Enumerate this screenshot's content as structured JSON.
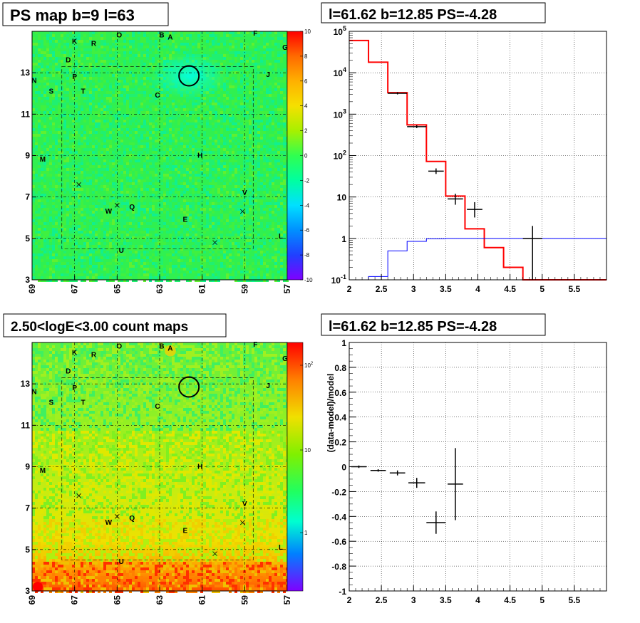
{
  "panels": {
    "tl": {
      "title": "PS map b=9 l=63"
    },
    "tr": {
      "title": "l=61.62 b=12.85 PS=-4.28"
    },
    "bl": {
      "title": "2.50<logE<3.00 count maps"
    },
    "br": {
      "title": "l=61.62 b=12.85 PS=-4.28"
    }
  },
  "chart_data": [
    {
      "type": "heatmap",
      "title": "PS map b=9 l=63",
      "x_ticks": [
        "69",
        "67",
        "65",
        "63",
        "61",
        "59",
        "57"
      ],
      "y_ticks": [
        "3",
        "5",
        "7",
        "9",
        "11",
        "13"
      ],
      "xlim": [
        69,
        57
      ],
      "ylim": [
        3,
        15
      ],
      "z_range": [
        -10,
        10
      ],
      "palette_labels": [
        "10",
        "8",
        "6",
        "4",
        "2",
        "0",
        "-2",
        "-4",
        "-6",
        "-8",
        "-10"
      ],
      "grid": true,
      "sources": [
        {
          "label": "O",
          "l": 64.9,
          "b": 14.7
        },
        {
          "label": "B",
          "l": 62.9,
          "b": 14.7
        },
        {
          "label": "A",
          "l": 62.5,
          "b": 14.6
        },
        {
          "label": "F",
          "l": 58.5,
          "b": 14.8
        },
        {
          "label": "K",
          "l": 67.0,
          "b": 14.4
        },
        {
          "label": "R",
          "l": 66.1,
          "b": 14.3
        },
        {
          "label": "G",
          "l": 57.1,
          "b": 14.1
        },
        {
          "label": "D",
          "l": 67.3,
          "b": 13.5
        },
        {
          "label": "P",
          "l": 67.0,
          "b": 12.7
        },
        {
          "label": "N",
          "l": 68.9,
          "b": 12.5
        },
        {
          "label": "J",
          "l": 57.9,
          "b": 12.8
        },
        {
          "label": "S",
          "l": 68.1,
          "b": 12.0
        },
        {
          "label": "T",
          "l": 66.6,
          "b": 12.0
        },
        {
          "label": "C",
          "l": 63.1,
          "b": 11.8
        },
        {
          "label": "M",
          "l": 68.5,
          "b": 8.7
        },
        {
          "label": "H",
          "l": 61.1,
          "b": 8.9
        },
        {
          "label": "V",
          "l": 59.0,
          "b": 7.1
        },
        {
          "label": "Q",
          "l": 64.3,
          "b": 6.4
        },
        {
          "label": "W",
          "l": 65.4,
          "b": 6.2
        },
        {
          "label": "E",
          "l": 61.8,
          "b": 5.8
        },
        {
          "label": "L",
          "l": 57.3,
          "b": 5.0
        },
        {
          "label": "U",
          "l": 64.8,
          "b": 4.3
        }
      ],
      "crosses": [
        {
          "l": 66.8,
          "b": 7.6
        },
        {
          "l": 65.0,
          "b": 6.6
        },
        {
          "l": 59.1,
          "b": 6.3
        },
        {
          "l": 60.4,
          "b": 4.8
        }
      ],
      "circle": {
        "l": 61.62,
        "b": 12.85
      }
    },
    {
      "type": "line",
      "title": "l=61.62 b=12.85 PS=-4.28",
      "xlim": [
        2,
        6
      ],
      "ylim": [
        0.1,
        100000
      ],
      "yscale": "log",
      "x_ticks": [
        "2",
        "2.5",
        "3",
        "3.5",
        "4",
        "4.5",
        "5",
        "5.5"
      ],
      "y_ticks": [
        "10^-1",
        "1",
        "10",
        "10^2",
        "10^3",
        "10^4",
        "10^5"
      ],
      "grid": true,
      "series": [
        {
          "color": "#ff0000",
          "edges": [
            2.0,
            2.3,
            2.6,
            2.9,
            3.2,
            3.5,
            3.8,
            4.1,
            4.4,
            4.7,
            5.0,
            5.3,
            5.6,
            6.0
          ],
          "values": [
            60000,
            18000,
            3300,
            550,
            72,
            10.5,
            1.7,
            0.6,
            0.2,
            0.1,
            0.1,
            0.1,
            0.1
          ]
        },
        {
          "color": "#0000ff",
          "edges": [
            2.0,
            2.3,
            2.6,
            2.9,
            3.2,
            3.5,
            3.8,
            4.1,
            4.4,
            4.7,
            5.0,
            5.3,
            5.6,
            6.0
          ],
          "values": [
            0.1,
            0.12,
            0.5,
            0.85,
            0.98,
            1.0,
            1.0,
            1.0,
            1.0,
            1.0,
            1.0,
            1.0,
            1.0
          ]
        }
      ],
      "data_points": [
        {
          "x": 2.75,
          "y": 3200,
          "xerr": 0.15,
          "ylo": 3000,
          "yhi": 3400
        },
        {
          "x": 3.05,
          "y": 500,
          "xerr": 0.15,
          "ylo": 460,
          "yhi": 540
        },
        {
          "x": 3.35,
          "y": 42,
          "xerr": 0.12,
          "ylo": 36,
          "yhi": 49
        },
        {
          "x": 3.65,
          "y": 9,
          "xerr": 0.12,
          "ylo": 6.5,
          "yhi": 12
        },
        {
          "x": 3.95,
          "y": 5,
          "xerr": 0.12,
          "ylo": 3.2,
          "yhi": 7.5
        },
        {
          "x": 4.85,
          "y": 1,
          "xerr": 0.15,
          "ylo": 0.1,
          "yhi": 2
        }
      ]
    },
    {
      "type": "heatmap",
      "title": "2.50<logE<3.00 count maps",
      "x_ticks": [
        "69",
        "67",
        "65",
        "63",
        "61",
        "59",
        "57"
      ],
      "y_ticks": [
        "3",
        "5",
        "7",
        "9",
        "11",
        "13"
      ],
      "xlim": [
        69,
        57
      ],
      "ylim": [
        3,
        15
      ],
      "z_scale": "log",
      "palette_labels": [
        "10^2",
        "10",
        "1"
      ],
      "grid": true,
      "circle": {
        "l": 61.62,
        "b": 12.85
      }
    },
    {
      "type": "scatter",
      "title": "l=61.62 b=12.85 PS=-4.28",
      "ylabel": "(data-model)/model",
      "xlim": [
        2,
        6
      ],
      "ylim": [
        -1,
        1
      ],
      "x_ticks": [
        "2",
        "2.5",
        "3",
        "3.5",
        "4",
        "4.5",
        "5",
        "5.5"
      ],
      "y_ticks": [
        "-1",
        "-0.8",
        "-0.6",
        "-0.4",
        "-0.2",
        "0",
        "0.2",
        "0.4",
        "0.6",
        "0.8",
        "1"
      ],
      "grid": true,
      "points": [
        {
          "x": 2.15,
          "y": 0.0,
          "xerr": 0.12,
          "yerr": 0.01
        },
        {
          "x": 2.45,
          "y": -0.03,
          "xerr": 0.12,
          "yerr": 0.01
        },
        {
          "x": 2.75,
          "y": -0.05,
          "xerr": 0.12,
          "yerr": 0.02
        },
        {
          "x": 3.05,
          "y": -0.13,
          "xerr": 0.13,
          "yerr": 0.04
        },
        {
          "x": 3.35,
          "y": -0.45,
          "xerr": 0.15,
          "yerr": 0.09
        },
        {
          "x": 3.65,
          "y": -0.14,
          "xerr": 0.12,
          "yerr": 0.29
        }
      ]
    }
  ]
}
